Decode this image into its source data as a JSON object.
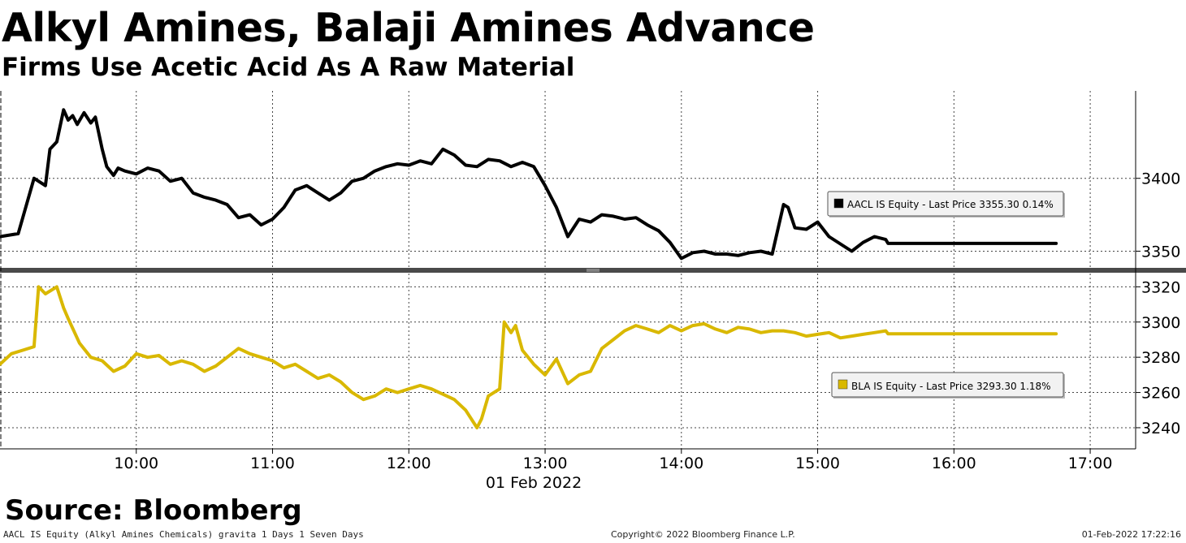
{
  "header": {
    "title": "Alkyl Amines, Balaji Amines Advance",
    "subtitle": "Firms Use Acetic Acid As A Raw Material"
  },
  "footer": {
    "source": "Source: Bloomberg",
    "left": "AACL IS Equity (Alkyl Amines Chemicals) gravita 1 Days 1 Seven Days",
    "middle": "Copyright© 2022 Bloomberg Finance L.P.",
    "right": "01-Feb-2022 17:22:16"
  },
  "colors": {
    "aacl": "#000000",
    "bla": "#d9b800",
    "grid": "#444444"
  },
  "chart_data": [
    {
      "type": "line",
      "xlabel": "01 Feb 2022",
      "ylabel": "",
      "x_ticks": [
        "10:00",
        "11:00",
        "12:00",
        "13:00",
        "14:00",
        "15:00",
        "16:00",
        "17:00"
      ],
      "xlim": [
        "09:00",
        "17:20"
      ],
      "ylim": [
        3338,
        3460
      ],
      "y_ticks": [
        3350,
        3400
      ],
      "grid": true,
      "legend_position": "right",
      "series": [
        {
          "name": "AACL IS Equity - Last Price",
          "legend_label": "AACL IS Equity - Last Price 3355.30 0.14%",
          "color": "#000000",
          "x": [
            "09:00",
            "09:08",
            "09:15",
            "09:20",
            "09:22",
            "09:25",
            "09:28",
            "09:30",
            "09:32",
            "09:34",
            "09:37",
            "09:40",
            "09:42",
            "09:45",
            "09:47",
            "09:50",
            "09:52",
            "09:55",
            "10:00",
            "10:05",
            "10:10",
            "10:15",
            "10:20",
            "10:25",
            "10:30",
            "10:35",
            "10:40",
            "10:45",
            "10:50",
            "10:55",
            "11:00",
            "11:05",
            "11:10",
            "11:15",
            "11:20",
            "11:25",
            "11:30",
            "11:35",
            "11:40",
            "11:45",
            "11:50",
            "11:55",
            "12:00",
            "12:05",
            "12:10",
            "12:15",
            "12:20",
            "12:25",
            "12:30",
            "12:35",
            "12:40",
            "12:45",
            "12:50",
            "12:55",
            "13:00",
            "13:05",
            "13:10",
            "13:15",
            "13:20",
            "13:25",
            "13:30",
            "13:35",
            "13:40",
            "13:45",
            "13:50",
            "13:55",
            "14:00",
            "14:05",
            "14:10",
            "14:15",
            "14:20",
            "14:25",
            "14:30",
            "14:35",
            "14:40",
            "14:45",
            "14:47",
            "14:50",
            "14:55",
            "15:00",
            "15:05",
            "15:10",
            "15:15",
            "15:20",
            "15:25",
            "15:30",
            "15:31",
            "16:45"
          ],
          "values": [
            3360,
            3362,
            3400,
            3395,
            3420,
            3425,
            3447,
            3440,
            3443,
            3437,
            3445,
            3438,
            3442,
            3420,
            3408,
            3402,
            3407,
            3405,
            3403,
            3407,
            3405,
            3398,
            3400,
            3390,
            3387,
            3385,
            3382,
            3373,
            3375,
            3368,
            3372,
            3380,
            3392,
            3395,
            3390,
            3385,
            3390,
            3398,
            3400,
            3405,
            3408,
            3410,
            3409,
            3412,
            3410,
            3420,
            3416,
            3409,
            3408,
            3413,
            3412,
            3408,
            3411,
            3408,
            3395,
            3380,
            3360,
            3372,
            3370,
            3375,
            3374,
            3372,
            3373,
            3368,
            3364,
            3356,
            3345,
            3349,
            3350,
            3348,
            3348,
            3347,
            3349,
            3350,
            3348,
            3382,
            3380,
            3366,
            3365,
            3370,
            3360,
            3355,
            3350,
            3356,
            3360,
            3358,
            3355.3,
            3355.3
          ]
        }
      ]
    },
    {
      "type": "line",
      "xlabel": "01 Feb 2022",
      "ylabel": "",
      "x_ticks": [
        "10:00",
        "11:00",
        "12:00",
        "13:00",
        "14:00",
        "15:00",
        "16:00",
        "17:00"
      ],
      "xlim": [
        "09:00",
        "17:20"
      ],
      "ylim": [
        3228,
        3328
      ],
      "y_ticks": [
        3240,
        3260,
        3280,
        3300,
        3320
      ],
      "grid": true,
      "legend_position": "right",
      "series": [
        {
          "name": "BLA IS Equity - Last Price",
          "legend_label": "BLA IS Equity - Last Price 3293.30 1.18%",
          "color": "#d9b800",
          "x": [
            "09:00",
            "09:05",
            "09:10",
            "09:15",
            "09:17",
            "09:20",
            "09:25",
            "09:28",
            "09:30",
            "09:35",
            "09:40",
            "09:45",
            "09:50",
            "09:55",
            "10:00",
            "10:05",
            "10:10",
            "10:15",
            "10:20",
            "10:25",
            "10:30",
            "10:35",
            "10:40",
            "10:45",
            "10:50",
            "10:55",
            "11:00",
            "11:05",
            "11:10",
            "11:15",
            "11:20",
            "11:25",
            "11:30",
            "11:35",
            "11:40",
            "11:45",
            "11:50",
            "11:55",
            "12:00",
            "12:05",
            "12:10",
            "12:15",
            "12:20",
            "12:25",
            "12:30",
            "12:32",
            "12:35",
            "12:40",
            "12:42",
            "12:45",
            "12:47",
            "12:50",
            "12:55",
            "13:00",
            "13:05",
            "13:10",
            "13:15",
            "13:20",
            "13:25",
            "13:30",
            "13:35",
            "13:40",
            "13:45",
            "13:50",
            "13:55",
            "14:00",
            "14:05",
            "14:10",
            "14:15",
            "14:20",
            "14:25",
            "14:30",
            "14:35",
            "14:40",
            "14:45",
            "14:50",
            "14:55",
            "15:00",
            "15:05",
            "15:10",
            "15:15",
            "15:20",
            "15:25",
            "15:30",
            "15:31",
            "16:45"
          ],
          "values": [
            3276,
            3282,
            3284,
            3286,
            3320,
            3316,
            3320,
            3308,
            3302,
            3288,
            3280,
            3278,
            3272,
            3275,
            3282,
            3280,
            3281,
            3276,
            3278,
            3276,
            3272,
            3275,
            3280,
            3285,
            3282,
            3280,
            3278,
            3274,
            3276,
            3272,
            3268,
            3270,
            3266,
            3260,
            3256,
            3258,
            3262,
            3260,
            3262,
            3264,
            3262,
            3259,
            3256,
            3250,
            3240,
            3245,
            3258,
            3262,
            3300,
            3294,
            3298,
            3284,
            3276,
            3270,
            3279,
            3265,
            3270,
            3272,
            3285,
            3290,
            3295,
            3298,
            3296,
            3294,
            3298,
            3295,
            3298,
            3299,
            3296,
            3294,
            3297,
            3296,
            3294,
            3295,
            3295,
            3294,
            3292,
            3293,
            3294,
            3291,
            3292,
            3293,
            3294,
            3295,
            3293.3,
            3293.3
          ]
        }
      ]
    }
  ]
}
